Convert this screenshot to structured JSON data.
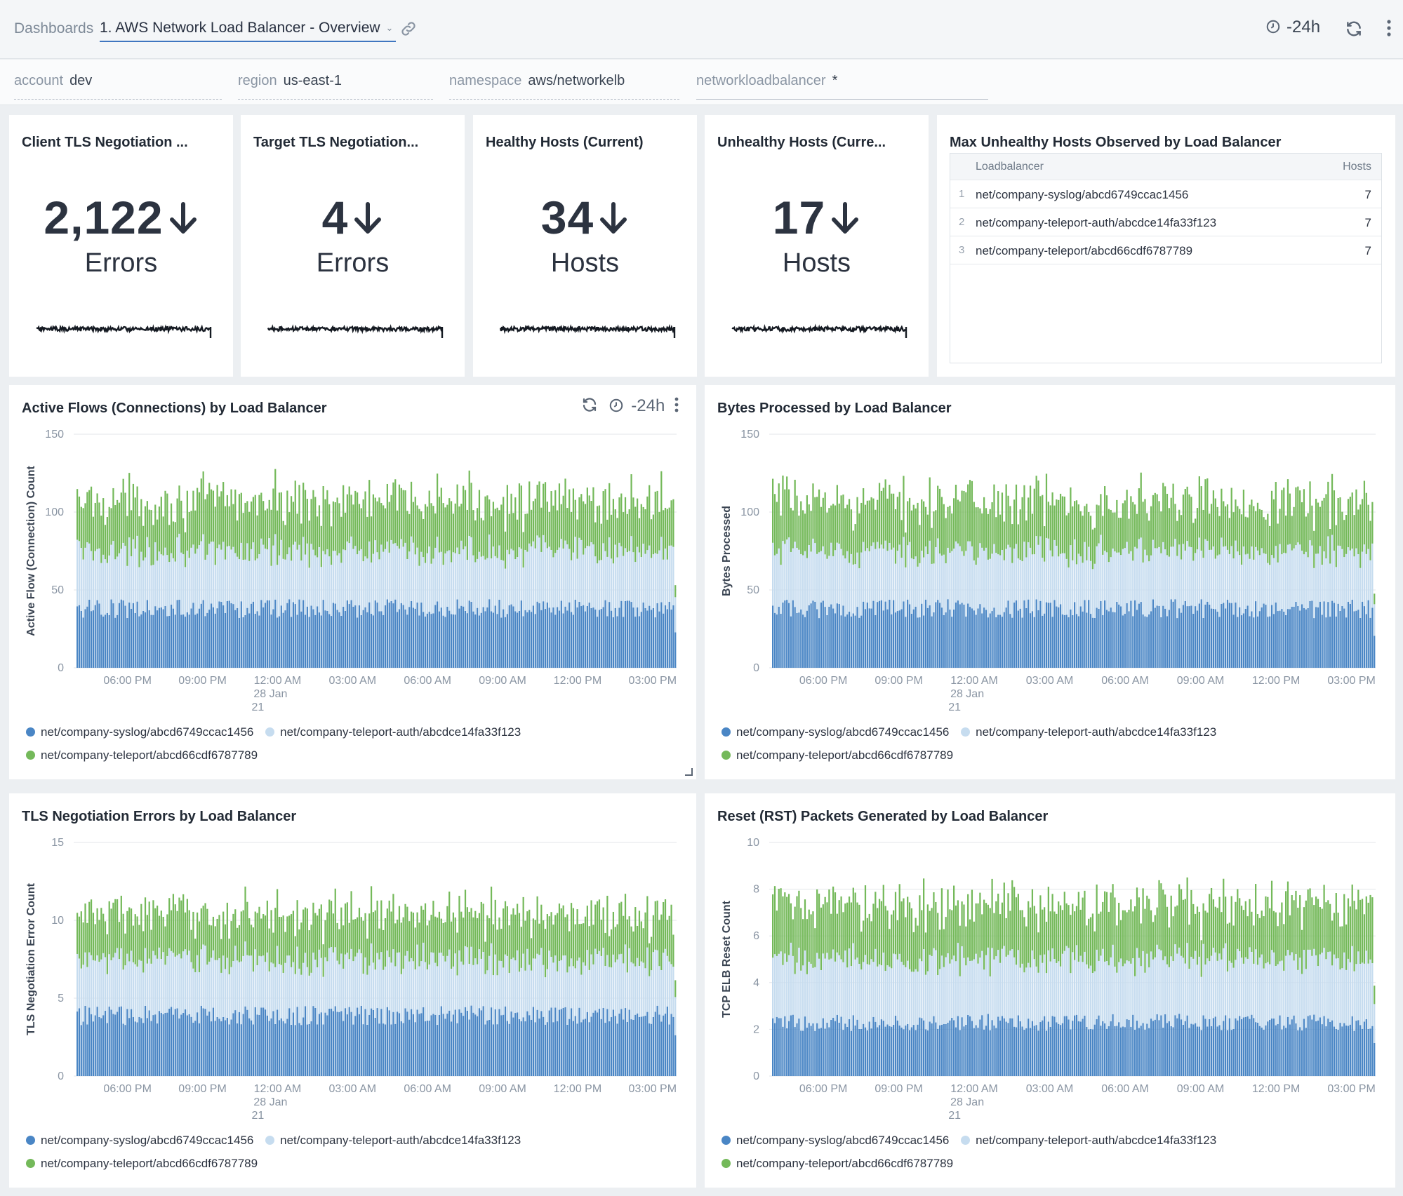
{
  "header": {
    "breadcrumb": "Dashboards",
    "title": "1. AWS Network Load Balancer - Overview",
    "time_range": "-24h"
  },
  "filters": [
    {
      "label": "account",
      "value": "dev"
    },
    {
      "label": "region",
      "value": "us-east-1"
    },
    {
      "label": "namespace",
      "value": "aws/networkelb"
    },
    {
      "label": "networkloadbalancer",
      "value": "*"
    }
  ],
  "kpis": [
    {
      "title": "Client TLS Negotiation ...",
      "value": "2,122",
      "unit": "Errors"
    },
    {
      "title": "Target TLS Negotiation...",
      "value": "4",
      "unit": "Errors"
    },
    {
      "title": "Healthy Hosts (Current)",
      "value": "34",
      "unit": "Hosts"
    },
    {
      "title": "Unhealthy Hosts (Curre...",
      "value": "17",
      "unit": "Hosts"
    }
  ],
  "table": {
    "title": "Max Unhealthy Hosts Observed by Load Balancer",
    "columns": [
      "Loadbalancer",
      "Hosts"
    ],
    "rows": [
      {
        "idx": "1",
        "name": "net/company-syslog/abcd6749ccac1456",
        "hosts": "7"
      },
      {
        "idx": "2",
        "name": "net/company-teleport-auth/abcdce14fa33f123",
        "hosts": "7"
      },
      {
        "idx": "3",
        "name": "net/company-teleport/abcd66cdf6787789",
        "hosts": "7"
      }
    ]
  },
  "colors": {
    "syslog": "#4a86c5",
    "auth": "#c6dcef",
    "teleport": "#74b95a"
  },
  "legend": [
    "net/company-syslog/abcd6749ccac1456",
    "net/company-teleport-auth/abcdce14fa33f123",
    "net/company-teleport/abcd66cdf6787789"
  ],
  "x_ticks": [
    "06:00 PM",
    "09:00 PM",
    "12:00 AM",
    "03:00 AM",
    "06:00 AM",
    "09:00 AM",
    "12:00 PM",
    "03:00 PM"
  ],
  "x_date": [
    "28 Jan",
    "21"
  ],
  "panel_tools": {
    "time_range": "-24h"
  },
  "chart_data": [
    {
      "type": "bar",
      "stacked": true,
      "title": "Active Flows (Connections) by Load Balancer",
      "ylabel": "Active Flow (Connection) Count",
      "ylim": [
        0,
        150
      ],
      "yticks": [
        "0",
        "50",
        "100",
        "150"
      ],
      "series": [
        {
          "name": "net/company-syslog/abcd6749ccac1456",
          "mean": 38
        },
        {
          "name": "net/company-teleport-auth/abcdce14fa33f123",
          "mean": 37
        },
        {
          "name": "net/company-teleport/abcd66cdf6787789",
          "mean": 32
        }
      ]
    },
    {
      "type": "bar",
      "stacked": true,
      "title": "Bytes Processed by Load Balancer",
      "ylabel": "Bytes Processed",
      "ylim": [
        0,
        150
      ],
      "yticks": [
        "0",
        "50",
        "100",
        "150"
      ],
      "series": [
        {
          "name": "net/company-syslog/abcd6749ccac1456",
          "mean": 38
        },
        {
          "name": "net/company-teleport-auth/abcdce14fa33f123",
          "mean": 37
        },
        {
          "name": "net/company-teleport/abcd66cdf6787789",
          "mean": 32
        }
      ]
    },
    {
      "type": "bar",
      "stacked": true,
      "title": "TLS Negotiation Errors by Load Balancer",
      "ylabel": "TLS Negotiation Error Count",
      "ylim": [
        0,
        15
      ],
      "yticks": [
        "0",
        "5",
        "10",
        "15"
      ],
      "series": [
        {
          "name": "net/company-syslog/abcd6749ccac1456",
          "mean": 3.9
        },
        {
          "name": "net/company-teleport-auth/abcdce14fa33f123",
          "mean": 3.6
        },
        {
          "name": "net/company-teleport/abcd66cdf6787789",
          "mean": 2.9
        }
      ]
    },
    {
      "type": "bar",
      "stacked": true,
      "title": "Reset (RST) Packets Generated by Load Balancer",
      "ylabel": "TCP ELB Reset Count",
      "ylim": [
        0,
        10
      ],
      "yticks": [
        "0",
        "2",
        "4",
        "6",
        "8",
        "10"
      ],
      "series": [
        {
          "name": "net/company-syslog/abcd6749ccac1456",
          "mean": 2.3
        },
        {
          "name": "net/company-teleport-auth/abcdce14fa33f123",
          "mean": 2.7
        },
        {
          "name": "net/company-teleport/abcd66cdf6787789",
          "mean": 2.3
        }
      ]
    }
  ]
}
